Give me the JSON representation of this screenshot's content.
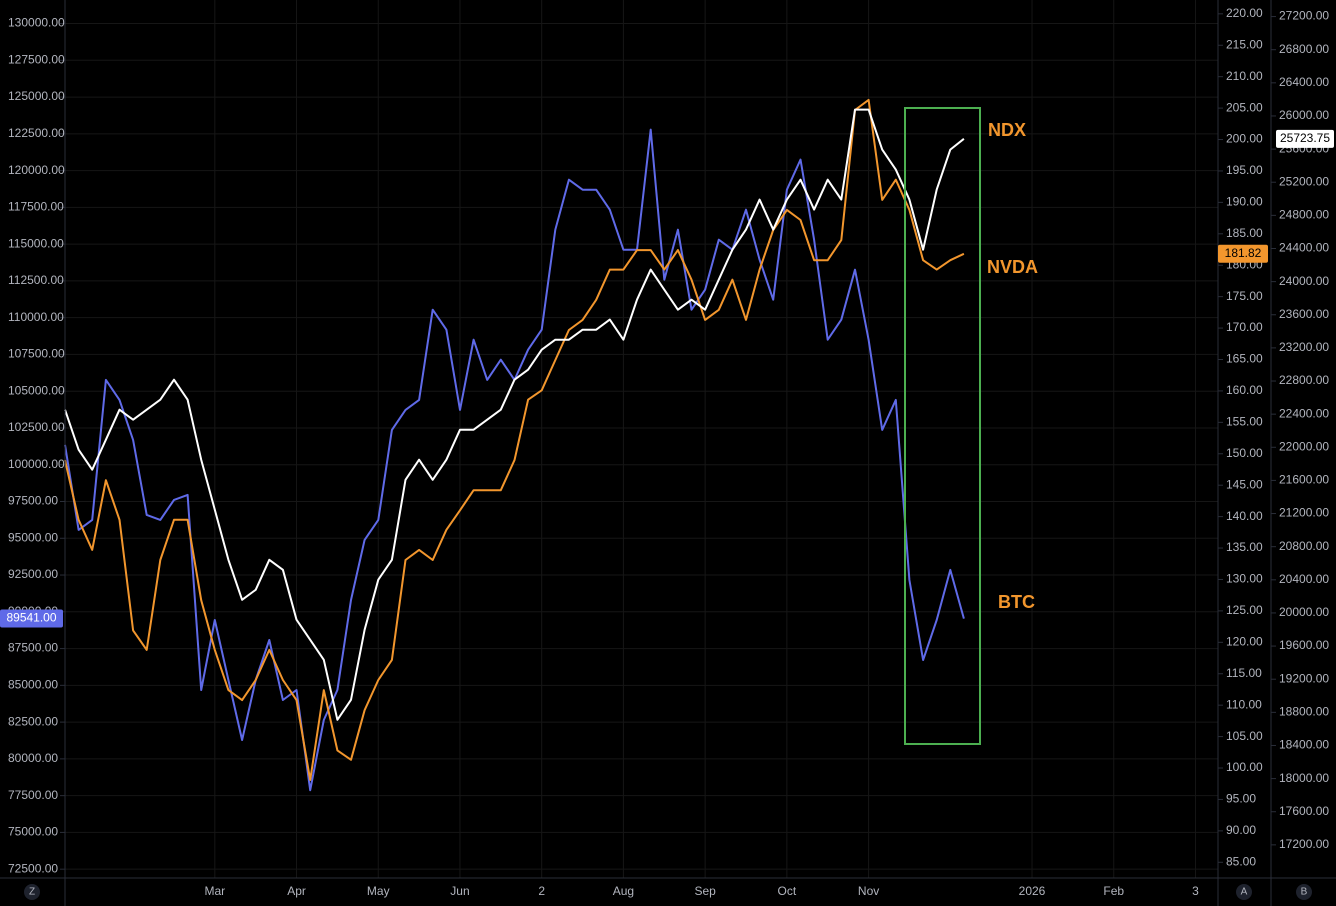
{
  "chart_data": {
    "type": "line",
    "categories": [
      null,
      null,
      null,
      null,
      null,
      null,
      null,
      null,
      null,
      null,
      null,
      "Mar",
      null,
      null,
      null,
      null,
      null,
      "Apr",
      null,
      null,
      null,
      null,
      null,
      "May",
      null,
      null,
      null,
      null,
      null,
      "Jun",
      null,
      null,
      null,
      null,
      null,
      "2",
      null,
      null,
      null,
      null,
      null,
      "Aug",
      null,
      null,
      null,
      null,
      null,
      "Sep",
      null,
      null,
      null,
      null,
      null,
      "Oct",
      null,
      null,
      null,
      null,
      null,
      "Nov",
      null,
      null,
      null,
      null,
      null,
      null,
      null,
      null,
      null,
      null,
      null,
      "2026",
      null,
      null,
      null,
      null,
      null,
      "Feb",
      null,
      null,
      null,
      null,
      null,
      "3"
    ],
    "series": [
      {
        "name": "BTC",
        "color": "#5f6ae8",
        "axis": "y",
        "last_label": "89541.00",
        "values": [
          101350,
          95570,
          96250,
          105770,
          104410,
          101690,
          96590,
          96250,
          97610,
          97950,
          84680,
          89440,
          85360,
          81280,
          85360,
          88080,
          84000,
          84680,
          77870,
          82640,
          84680,
          90800,
          94890,
          96250,
          102370,
          103730,
          104410,
          110540,
          109180,
          103730,
          108500,
          105770,
          107140,
          105770,
          107820,
          109180,
          115980,
          119380,
          118700,
          118700,
          117340,
          114620,
          114620,
          122790,
          112580,
          115980,
          110540,
          111900,
          115300,
          114620,
          117340,
          113940,
          111220,
          118700,
          120750,
          115300,
          108500,
          109860,
          113260,
          108500,
          102370,
          104410,
          92160,
          86720,
          89440,
          92850,
          89541,
          null,
          null,
          null,
          null,
          null,
          null,
          null,
          null,
          null,
          null,
          null,
          null,
          null,
          null,
          null,
          null,
          null
        ]
      },
      {
        "name": "NVDA",
        "color": "#f2962d",
        "axis": "y2",
        "last_label": "181.82",
        "values": [
          149,
          139.5,
          134.7,
          145.8,
          139.5,
          121.9,
          118.8,
          133.1,
          139.5,
          139.5,
          126.7,
          118.8,
          112.4,
          110.8,
          114,
          118.8,
          114,
          110.8,
          98.1,
          112.4,
          102.8,
          101.3,
          109.2,
          114,
          117.2,
          133.1,
          134.7,
          133.1,
          137.9,
          141,
          144.2,
          144.2,
          144.2,
          149,
          158.6,
          160.1,
          164.9,
          169.7,
          171.3,
          174.5,
          179.3,
          179.3,
          182.4,
          182.4,
          179.3,
          182.4,
          177.7,
          171.3,
          172.9,
          177.7,
          171.3,
          179.3,
          185.6,
          188.8,
          187.2,
          180.8,
          180.8,
          184,
          204.7,
          206.3,
          190.4,
          193.6,
          188.8,
          180.8,
          179.3,
          180.8,
          181.82,
          null,
          null,
          null,
          null,
          null,
          null,
          null,
          null,
          null,
          null,
          null,
          null,
          null,
          null,
          null,
          null,
          null
        ]
      },
      {
        "name": "NDX",
        "color": "#ffffff",
        "axis": "y3",
        "last_label": "25723.75",
        "values": [
          22454,
          21971,
          21729,
          22091,
          22454,
          22333,
          22454,
          22575,
          22816,
          22575,
          21850,
          21246,
          20642,
          20159,
          20280,
          20642,
          20521,
          19918,
          19676,
          19434,
          18710,
          18951,
          19797,
          20401,
          20642,
          21608,
          21850,
          21608,
          21850,
          22212,
          22212,
          22333,
          22454,
          22816,
          22937,
          23178,
          23299,
          23299,
          23420,
          23420,
          23541,
          23299,
          23782,
          24145,
          23903,
          23661,
          23782,
          23661,
          24024,
          24386,
          24628,
          24990,
          24628,
          24990,
          25231,
          24869,
          25231,
          24990,
          26077,
          26077,
          25594,
          25352,
          24990,
          24386,
          25111,
          25594,
          25723.75,
          null,
          null,
          null,
          null,
          null,
          null,
          null,
          null,
          null,
          null,
          null,
          null,
          null,
          null,
          null,
          null,
          null
        ]
      }
    ],
    "ylim": [
      71900,
      131600
    ],
    "yticks": [
      {
        "value": 72500,
        "label": "72500.00"
      },
      {
        "value": 75000,
        "label": "75000.00"
      },
      {
        "value": 77500,
        "label": "77500.00"
      },
      {
        "value": 80000,
        "label": "80000.00"
      },
      {
        "value": 82500,
        "label": "82500.00"
      },
      {
        "value": 85000,
        "label": "85000.00"
      },
      {
        "value": 87500,
        "label": "87500.00"
      },
      {
        "value": 90000,
        "label": "90000.00"
      },
      {
        "value": 92500,
        "label": "92500.00"
      },
      {
        "value": 95000,
        "label": "95000.00"
      },
      {
        "value": 97500,
        "label": "97500.00"
      },
      {
        "value": 100000,
        "label": "100000.00"
      },
      {
        "value": 102500,
        "label": "102500.00"
      },
      {
        "value": 105000,
        "label": "105000.00"
      },
      {
        "value": 107500,
        "label": "107500.00"
      },
      {
        "value": 110000,
        "label": "110000.00"
      },
      {
        "value": 112500,
        "label": "112500.00"
      },
      {
        "value": 115000,
        "label": "115000.00"
      },
      {
        "value": 117500,
        "label": "117500.00"
      },
      {
        "value": 120000,
        "label": "120000.00"
      },
      {
        "value": 122500,
        "label": "122500.00"
      },
      {
        "value": 125000,
        "label": "125000.00"
      },
      {
        "value": 127500,
        "label": "127500.00"
      },
      {
        "value": 130000,
        "label": "130000.00"
      }
    ],
    "y2lim": [
      82.5,
      222.2
    ],
    "y2ticks": [
      {
        "value": 85,
        "label": "85.00"
      },
      {
        "value": 90,
        "label": "90.00"
      },
      {
        "value": 95,
        "label": "95.00"
      },
      {
        "value": 100,
        "label": "100.00"
      },
      {
        "value": 105,
        "label": "105.00"
      },
      {
        "value": 110,
        "label": "110.00"
      },
      {
        "value": 115,
        "label": "115.00"
      },
      {
        "value": 120,
        "label": "120.00"
      },
      {
        "value": 125,
        "label": "125.00"
      },
      {
        "value": 130,
        "label": "130.00"
      },
      {
        "value": 135,
        "label": "135.00"
      },
      {
        "value": 140,
        "label": "140.00"
      },
      {
        "value": 145,
        "label": "145.00"
      },
      {
        "value": 150,
        "label": "150.00"
      },
      {
        "value": 155,
        "label": "155.00"
      },
      {
        "value": 160,
        "label": "160.00"
      },
      {
        "value": 165,
        "label": "165.00"
      },
      {
        "value": 170,
        "label": "170.00"
      },
      {
        "value": 175,
        "label": "175.00"
      },
      {
        "value": 180,
        "label": "180.00"
      },
      {
        "value": 185,
        "label": "185.00"
      },
      {
        "value": 190,
        "label": "190.00"
      },
      {
        "value": 195,
        "label": "195.00"
      },
      {
        "value": 200,
        "label": "200.00"
      },
      {
        "value": 205,
        "label": "205.00"
      },
      {
        "value": 210,
        "label": "210.00"
      },
      {
        "value": 215,
        "label": "215.00"
      },
      {
        "value": 220,
        "label": "220.00"
      }
    ],
    "y3lim": [
      16800,
      27400
    ],
    "y3ticks": [
      {
        "value": 17200,
        "label": "17200.00"
      },
      {
        "value": 17600,
        "label": "17600.00"
      },
      {
        "value": 18000,
        "label": "18000.00"
      },
      {
        "value": 18400,
        "label": "18400.00"
      },
      {
        "value": 18800,
        "label": "18800.00"
      },
      {
        "value": 19200,
        "label": "19200.00"
      },
      {
        "value": 19600,
        "label": "19600.00"
      },
      {
        "value": 20000,
        "label": "20000.00"
      },
      {
        "value": 20400,
        "label": "20400.00"
      },
      {
        "value": 20800,
        "label": "20800.00"
      },
      {
        "value": 21200,
        "label": "21200.00"
      },
      {
        "value": 21600,
        "label": "21600.00"
      },
      {
        "value": 22000,
        "label": "22000.00"
      },
      {
        "value": 22400,
        "label": "22400.00"
      },
      {
        "value": 22800,
        "label": "22800.00"
      },
      {
        "value": 23200,
        "label": "23200.00"
      },
      {
        "value": 23600,
        "label": "23600.00"
      },
      {
        "value": 24000,
        "label": "24000.00"
      },
      {
        "value": 24400,
        "label": "24400.00"
      },
      {
        "value": 24800,
        "label": "24800.00"
      },
      {
        "value": 25200,
        "label": "25200.00"
      },
      {
        "value": 25600,
        "label": "25600.00"
      },
      {
        "value": 26000,
        "label": "26000.00"
      },
      {
        "value": 26400,
        "label": "26400.00"
      },
      {
        "value": 26800,
        "label": "26800.00"
      },
      {
        "value": 27200,
        "label": "27200.00"
      }
    ],
    "grid": true,
    "annotations": [
      {
        "text": "NDX"
      },
      {
        "text": "NVDA"
      },
      {
        "text": "BTC"
      }
    ],
    "corner_labels": [
      "Z",
      "A",
      "B"
    ]
  }
}
